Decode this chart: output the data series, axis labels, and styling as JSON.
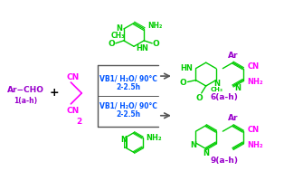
{
  "bg_color": "#ffffff",
  "colors": {
    "purple": "#9900CC",
    "magenta": "#FF00FF",
    "green": "#00CC00",
    "blue": "#0055FF",
    "black": "#000000",
    "gray": "#555555"
  },
  "reactant1_text": "Ar−CHO",
  "reactant1_label": "1(a-h)",
  "reactant2_label": "2",
  "condition1_line1": "VB1/ H₂O/ 90°C",
  "condition1_line2": "2-2.5h",
  "condition2_line1": "VB1/ H₂O/ 90°C",
  "condition2_line2": "2-2.5h",
  "product1_label": "6(a-h)",
  "product2_label": "9(a-h)"
}
